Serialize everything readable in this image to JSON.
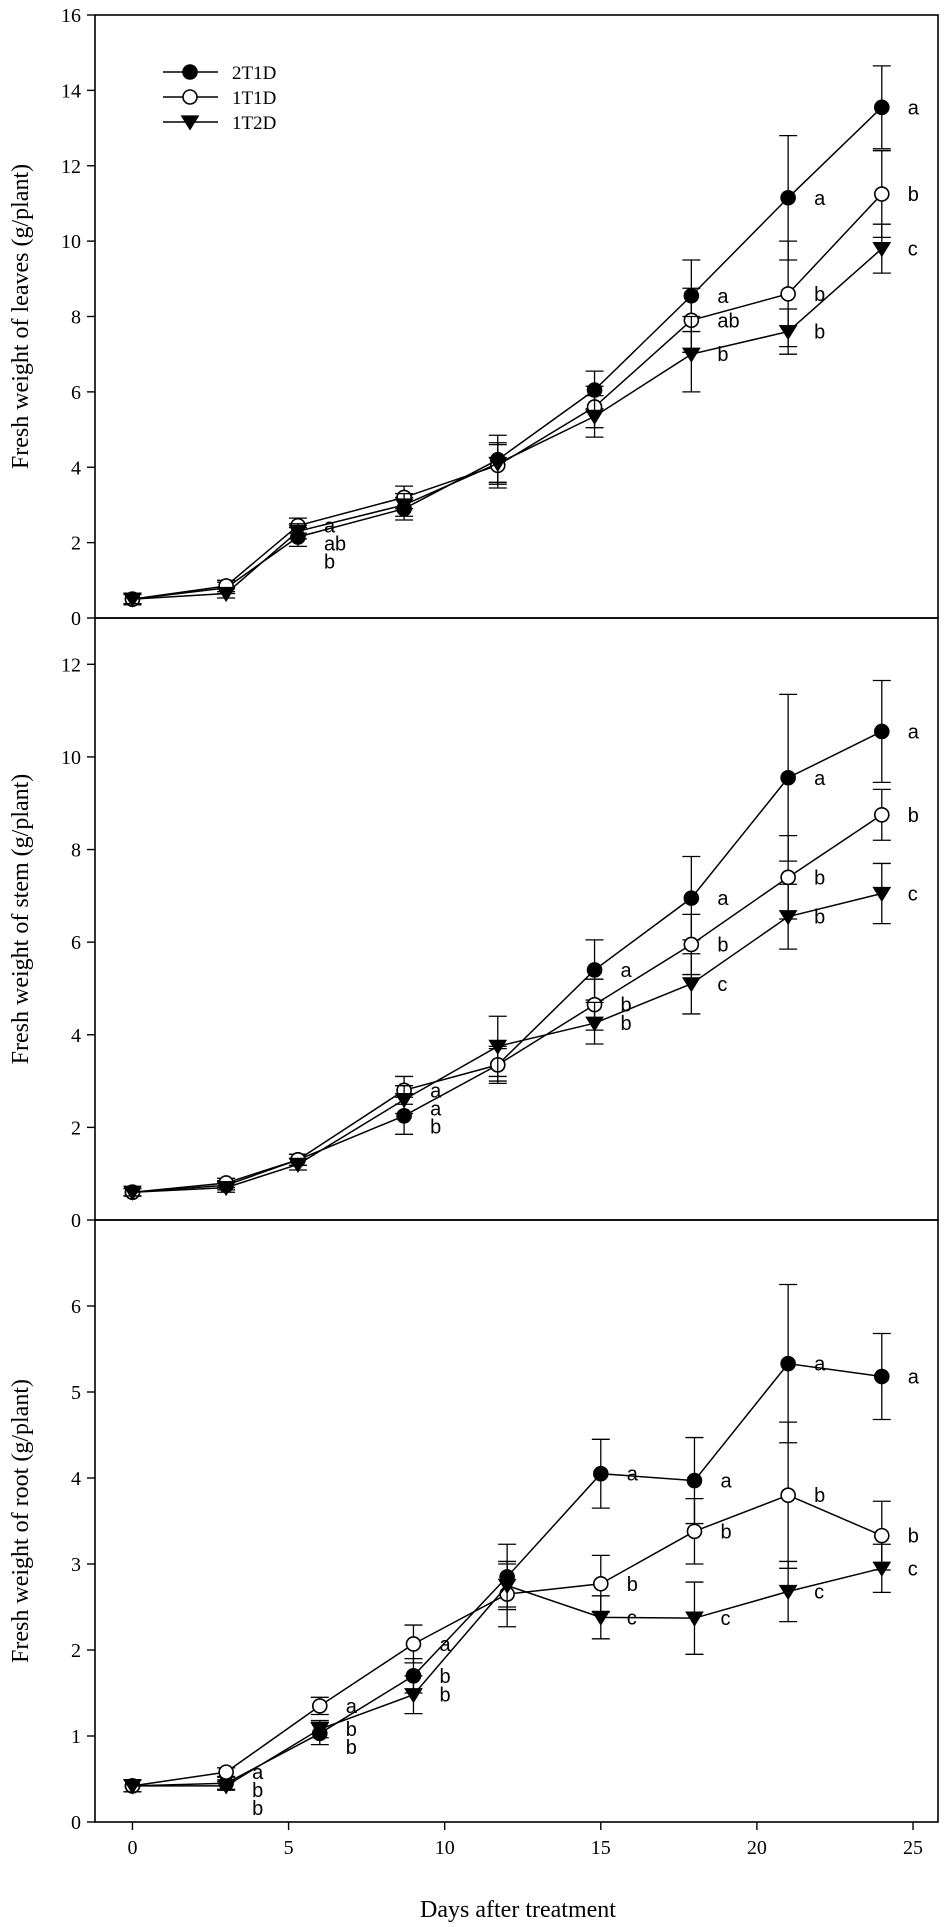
{
  "legend": [
    {
      "name": "2T1D",
      "marker": "circle-filled"
    },
    {
      "name": "1T1D",
      "marker": "circle-open"
    },
    {
      "name": "1T2D",
      "marker": "triangle-down-filled"
    }
  ],
  "xaxis": {
    "label": "Days after treatment",
    "ticks": [
      0,
      5,
      10,
      15,
      20,
      25
    ],
    "range": [
      -1.2,
      25.8
    ]
  },
  "chart_data": [
    {
      "type": "line",
      "ylabel": "Fresh weight of leaves (g/plant)",
      "ylim": [
        0,
        16
      ],
      "yticks": [
        0,
        2,
        4,
        6,
        8,
        10,
        12,
        14,
        16
      ],
      "x": [
        0,
        3,
        5.3,
        8.7,
        11.7,
        14.8,
        17.9,
        21,
        24
      ],
      "series": [
        {
          "name": "2T1D",
          "values": [
            0.5,
            0.8,
            2.15,
            2.9,
            4.2,
            6.05,
            8.55,
            11.15,
            13.55
          ],
          "errors": [
            0.15,
            0.15,
            0.25,
            0.3,
            0.65,
            0.5,
            0.95,
            1.65,
            1.1
          ],
          "letters": [
            "",
            "",
            "b",
            "",
            "",
            "",
            "a",
            "a",
            "a"
          ]
        },
        {
          "name": "1T1D",
          "values": [
            0.5,
            0.85,
            2.45,
            3.2,
            4.05,
            5.6,
            7.9,
            8.6,
            11.25
          ],
          "errors": [
            0.15,
            0.15,
            0.2,
            0.3,
            0.6,
            0.55,
            0.85,
            1.4,
            1.15
          ],
          "letters": [
            "",
            "",
            "a",
            "",
            "",
            "",
            "ab",
            "b",
            "b"
          ]
        },
        {
          "name": "1T2D",
          "values": [
            0.5,
            0.65,
            2.3,
            3.0,
            4.1,
            5.35,
            7.0,
            7.6,
            9.8
          ],
          "errors": [
            0.12,
            0.12,
            0.2,
            0.3,
            0.5,
            0.55,
            1.0,
            0.6,
            0.65
          ],
          "letters": [
            "",
            "",
            "ab",
            "",
            "",
            "",
            "b",
            "b",
            "c"
          ]
        }
      ]
    },
    {
      "type": "line",
      "ylabel": "Fresh weight of stem (g/plant)",
      "ylim": [
        0,
        13
      ],
      "yticks": [
        0,
        2,
        4,
        6,
        8,
        10,
        12
      ],
      "x": [
        0,
        3,
        5.3,
        8.7,
        11.7,
        14.8,
        17.9,
        21,
        24
      ],
      "series": [
        {
          "name": "2T1D",
          "values": [
            0.6,
            0.75,
            1.3,
            2.25,
            3.35,
            5.4,
            6.95,
            9.55,
            10.55
          ],
          "errors": [
            0.08,
            0.1,
            0.12,
            0.4,
            0.35,
            0.65,
            0.9,
            1.8,
            1.1
          ],
          "letters": [
            "",
            "",
            "",
            "b",
            "",
            "a",
            "a",
            "a",
            "a"
          ]
        },
        {
          "name": "1T1D",
          "values": [
            0.6,
            0.8,
            1.3,
            2.8,
            3.35,
            4.65,
            5.95,
            7.4,
            8.75
          ],
          "errors": [
            0.08,
            0.1,
            0.12,
            0.3,
            0.4,
            0.55,
            0.65,
            0.9,
            0.55
          ],
          "letters": [
            "",
            "",
            "",
            "a",
            "",
            "b",
            "b",
            "b",
            "b"
          ]
        },
        {
          "name": "1T2D",
          "values": [
            0.6,
            0.7,
            1.2,
            2.6,
            3.75,
            4.25,
            5.1,
            6.55,
            7.05
          ],
          "errors": [
            0.08,
            0.1,
            0.12,
            0.3,
            0.65,
            0.45,
            0.65,
            0.7,
            0.65
          ],
          "letters": [
            "",
            "",
            "",
            "a",
            "",
            "b",
            "c",
            "b",
            "c"
          ]
        }
      ]
    },
    {
      "type": "line",
      "ylabel": "Fresh weight of root (g/plant)",
      "ylim": [
        0,
        7
      ],
      "yticks": [
        0,
        1,
        2,
        3,
        4,
        5,
        6
      ],
      "x": [
        0,
        3,
        6,
        9,
        12,
        15,
        18,
        21,
        24
      ],
      "series": [
        {
          "name": "2T1D",
          "values": [
            0.42,
            0.45,
            1.03,
            1.7,
            2.85,
            4.05,
            3.97,
            5.33,
            5.18
          ],
          "errors": [
            0.07,
            0.07,
            0.13,
            0.2,
            0.38,
            0.4,
            0.5,
            0.92,
            0.5
          ],
          "letters": [
            "",
            "b",
            "b",
            "b",
            "",
            "a",
            "a",
            "a",
            "a"
          ]
        },
        {
          "name": "1T1D",
          "values": [
            0.42,
            0.58,
            1.35,
            2.07,
            2.65,
            2.77,
            3.38,
            3.8,
            3.33
          ],
          "errors": [
            0.07,
            0.05,
            0.1,
            0.22,
            0.38,
            0.33,
            0.38,
            0.85,
            0.4
          ],
          "letters": [
            "",
            "a",
            "a",
            "a",
            "",
            "b",
            "b",
            "b",
            "b"
          ]
        },
        {
          "name": "1T2D",
          "values": [
            0.42,
            0.42,
            1.08,
            1.48,
            2.75,
            2.38,
            2.37,
            2.68,
            2.95
          ],
          "errors": [
            0.07,
            0.05,
            0.1,
            0.22,
            0.25,
            0.25,
            0.42,
            0.35,
            0.28
          ],
          "letters": [
            "",
            "b",
            "b",
            "b",
            "",
            "c",
            "c",
            "c",
            "c"
          ]
        }
      ]
    }
  ]
}
